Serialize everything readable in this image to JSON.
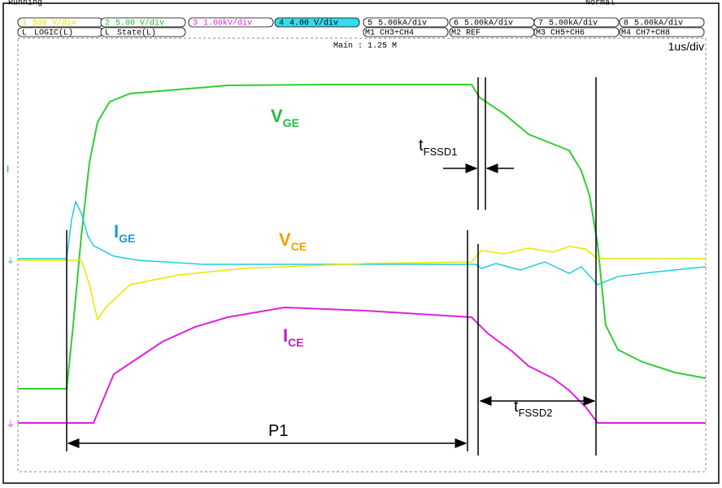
{
  "status": {
    "left": "Running",
    "right": "Normal"
  },
  "channels": [
    {
      "id": "1",
      "scale": "500 V/div",
      "color": "#e6e600"
    },
    {
      "id": "2",
      "scale": "5.00 V/div",
      "color": "#22bb22"
    },
    {
      "id": "3",
      "scale": "1.00kV/div",
      "color": "#dd22dd"
    },
    {
      "id": "4",
      "scale": "4.00 V/div",
      "color": "#000000"
    },
    {
      "id": "5",
      "scale": "5.00kA/div",
      "color": "#000000"
    },
    {
      "id": "6",
      "scale": "5.00kA/div",
      "color": "#000000"
    },
    {
      "id": "7",
      "scale": "5.00kA/div",
      "color": "#000000"
    },
    {
      "id": "8",
      "scale": "5.00kA/div",
      "color": "#000000"
    }
  ],
  "math": [
    {
      "id": "L",
      "label": "LOGIC(L)"
    },
    {
      "id": "L",
      "label": "State(L)"
    },
    {
      "id": "M1",
      "label": "CH3+CH4"
    },
    {
      "id": "M2",
      "label": "REF"
    },
    {
      "id": "M3",
      "label": "CH5+CH6"
    },
    {
      "id": "M4",
      "label": "CH7+CH8"
    }
  ],
  "timebase": {
    "memory": "Main : 1.25 M",
    "scale": "1us/div"
  },
  "trace_labels": {
    "vge": {
      "main": "V",
      "sub": "GE"
    },
    "ige": {
      "main": "I",
      "sub": "GE"
    },
    "vce": {
      "main": "V",
      "sub": "CE"
    },
    "ice": {
      "main": "I",
      "sub": "CE"
    }
  },
  "annotations": {
    "t1": {
      "main": "t",
      "sub": "FSSD1"
    },
    "t2": {
      "main": "t",
      "sub": "FSSD2"
    },
    "p1": "P1"
  }
}
